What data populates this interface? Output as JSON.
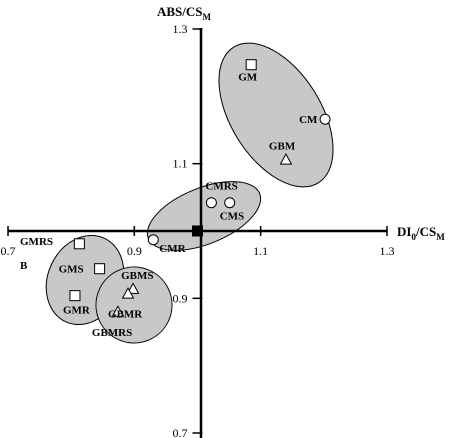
{
  "chart_data": {
    "type": "scatter",
    "title": "",
    "xlabel": {
      "main": "DI",
      "sub": "0",
      "sep": "/CS",
      "sub2": "M"
    },
    "ylabel": {
      "main": "ABS/CS",
      "sub": "M"
    },
    "xlim": [
      0.7,
      1.3
    ],
    "ylim": [
      0.7,
      1.3
    ],
    "origin": [
      1.0,
      1.0
    ],
    "grid": false,
    "x_ticks": [
      {
        "value": 0.7,
        "label": "0.7"
      },
      {
        "value": 0.9,
        "label": "0.9"
      },
      {
        "value": 1.1,
        "label": "1.1"
      },
      {
        "value": 1.3,
        "label": "1.3"
      }
    ],
    "y_ticks": [
      {
        "value": 1.3,
        "label": "1.3"
      },
      {
        "value": 1.1,
        "label": "1.1"
      },
      {
        "value": 0.9,
        "label": "0.9"
      },
      {
        "value": 0.7,
        "label": "0.7"
      }
    ],
    "reference_point": {
      "x": 1.0,
      "y": 1.0,
      "marker": "filled-square"
    },
    "points": [
      {
        "label": "GM",
        "x": 1.085,
        "y": 1.247,
        "marker": "square"
      },
      {
        "label": "CM",
        "x": 1.202,
        "y": 1.166,
        "marker": "circle"
      },
      {
        "label": "GBM",
        "x": 1.14,
        "y": 1.106,
        "marker": "triangle"
      },
      {
        "label": "CMRS",
        "x": 1.022,
        "y": 1.042,
        "marker": "circle"
      },
      {
        "label": "CMS",
        "x": 1.051,
        "y": 1.042,
        "marker": "circle"
      },
      {
        "label": "CMR",
        "x": 0.93,
        "y": 0.987,
        "marker": "circle"
      },
      {
        "label": "GMRS B",
        "x": 0.813,
        "y": 0.981,
        "marker": "square"
      },
      {
        "label": "GMS",
        "x": 0.845,
        "y": 0.944,
        "marker": "square"
      },
      {
        "label": "GMR",
        "x": 0.806,
        "y": 0.904,
        "marker": "square"
      },
      {
        "label": "GBMS",
        "x": 0.898,
        "y": 0.914,
        "marker": "triangle"
      },
      {
        "label": "GBMR",
        "x": 0.89,
        "y": 0.907,
        "marker": "triangle"
      },
      {
        "label": "GBMRS",
        "x": 0.874,
        "y": 0.88,
        "marker": "triangle"
      }
    ],
    "groups": [
      {
        "members": [
          "GM",
          "CM",
          "GBM"
        ],
        "fill": "#c8c8c8"
      },
      {
        "members": [
          "CMRS",
          "CMS",
          "CMR"
        ],
        "fill": "#c8c8c8"
      },
      {
        "members": [
          "GMRS B",
          "GMS",
          "GMR"
        ],
        "fill": "#c8c8c8"
      },
      {
        "members": [
          "GBMS",
          "GBMR",
          "GBMRS"
        ],
        "fill": "#c8c8c8"
      }
    ],
    "colors": {
      "group_fill": "#c8c8c8",
      "stroke": "#000000",
      "marker_fill": "#ffffff"
    }
  }
}
